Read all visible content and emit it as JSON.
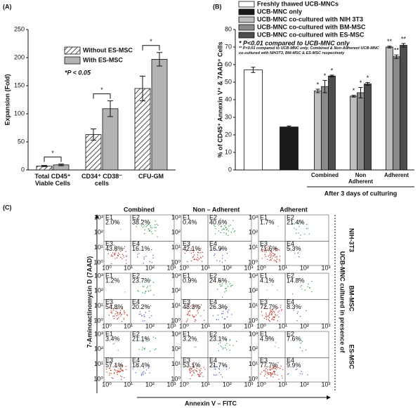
{
  "chart_data": [
    {
      "type": "bar",
      "panel_label": "(A)",
      "y_label": "Expansion (Fold)",
      "categories": [
        "Total CD45⁺ Viable Cells",
        "CD34⁺ CD38⁻ cells",
        "CFU-GM"
      ],
      "series": [
        {
          "name": "Without ES-MSC",
          "color": "#ffffff",
          "pattern": "hatch",
          "values": [
            7,
            63,
            145
          ],
          "errors": [
            1,
            10,
            22
          ]
        },
        {
          "name": "With ES-MSC",
          "color": "#b3b3b3",
          "values": [
            9,
            109,
            197
          ],
          "errors": [
            1.5,
            14,
            12
          ]
        }
      ],
      "significance": [
        "*",
        "*",
        "*"
      ],
      "note": "*P < 0.05",
      "ylim": [
        0,
        250
      ],
      "yticks": [
        0,
        50,
        100,
        150,
        200,
        250
      ]
    },
    {
      "type": "bar",
      "panel_label": "(B)",
      "y_label": "% of CD45⁺ Annexin V⁺ & 7AAD⁺ Cells",
      "categories": [
        null,
        null,
        "Combined",
        "Non Adherent",
        "Adherent"
      ],
      "x_group_label": "After 3 days of culturing",
      "series": [
        {
          "name": "Freshly thawed UCB-MNCs",
          "color": "#ffffff",
          "values": [
            57,
            null,
            null,
            null,
            null
          ],
          "errors": [
            1.5,
            null,
            null,
            null,
            null
          ],
          "markers": [
            null,
            null,
            null,
            null,
            null
          ]
        },
        {
          "name": "UCB-MNC only",
          "color": "#1a1a1a",
          "values": [
            null,
            24.5,
            null,
            null,
            null
          ],
          "errors": [
            null,
            0.5,
            null,
            null,
            null
          ],
          "markers": [
            null,
            null,
            null,
            null,
            null
          ]
        },
        {
          "name": "UCB-MNC co-cultured with NIH 3T3",
          "color": "#bdbdbd",
          "values": [
            null,
            null,
            45,
            42,
            70
          ],
          "errors": [
            null,
            null,
            1,
            0.5,
            0.5
          ],
          "markers": [
            null,
            null,
            "*",
            "*",
            "**"
          ]
        },
        {
          "name": "UCB-MNC co-cultured with BM-MSC",
          "color": "#8a8a8a",
          "values": [
            null,
            null,
            47.5,
            44,
            64.5
          ],
          "errors": [
            null,
            null,
            3.5,
            3,
            1
          ],
          "markers": [
            null,
            null,
            "*",
            "*",
            "**"
          ]
        },
        {
          "name": "UCB-MNC co-cultured with ES-MSC",
          "color": "#4d4d4d",
          "values": [
            null,
            null,
            53.5,
            49,
            71
          ],
          "errors": [
            null,
            null,
            0.5,
            0.8,
            1
          ],
          "markers": [
            null,
            null,
            "*",
            "*",
            "**"
          ]
        }
      ],
      "notes": [
        "* P<0.01 compared to UCB-MNC only",
        "** P<0.01 compared to UCB-MNC only, Combined & Non-Adherent UCB-MNC co-cultured with NIH3T3, BM-MSC & ES-MSC respectively"
      ],
      "ylim": [
        0,
        80
      ],
      "yticks": [
        0,
        10,
        20,
        30,
        40,
        50,
        60,
        70,
        80
      ]
    }
  ],
  "flow_panel": {
    "panel_label": "(C)",
    "y_label": "7-Aminoactinomycin D (7AAD)",
    "x_label": "Annexin V – FITC",
    "row_title": "UCB-MNC cultured in presence of",
    "columns": [
      "Combined",
      "Non – Adherent",
      "Adherent"
    ],
    "rows": [
      "NIH-3T3",
      "BM-MSC",
      "ES-MSC"
    ],
    "axis_ticks": [
      "10⁰",
      "10¹",
      "10²",
      "10³"
    ],
    "plots": [
      [
        [
          {
            "gate": "E1",
            "percent": "2.0%"
          },
          {
            "gate": "E2",
            "percent": "38.2%"
          },
          {
            "gate": "E3",
            "percent": "43.8%"
          },
          {
            "gate": "E4",
            "percent": "16.1%"
          }
        ],
        [
          {
            "gate": "E1",
            "percent": "0.4%"
          },
          {
            "gate": "E2",
            "percent": "40.6%"
          },
          {
            "gate": "E3",
            "percent": "42.1%"
          },
          {
            "gate": "E4",
            "percent": "16.9%"
          }
        ],
        [
          {
            "gate": "E1",
            "percent": "1.7%"
          },
          {
            "gate": "E2",
            "percent": "21.4%"
          },
          {
            "gate": "E3",
            "percent": "71.6%"
          },
          {
            "gate": "E4",
            "percent": "5.3%"
          }
        ]
      ],
      [
        [
          {
            "gate": "E1",
            "percent": "1.2%"
          },
          {
            "gate": "E2",
            "percent": "23.7%"
          },
          {
            "gate": "E3",
            "percent": "54.8%"
          },
          {
            "gate": "E4",
            "percent": "20.2%"
          }
        ],
        [
          {
            "gate": "E1",
            "percent": "0.9%"
          },
          {
            "gate": "E2",
            "percent": "24.6%"
          },
          {
            "gate": "E3",
            "percent": "48.3%"
          },
          {
            "gate": "E4",
            "percent": "26.3%"
          }
        ],
        [
          {
            "gate": "E1",
            "percent": "4.1%"
          },
          {
            "gate": "E2",
            "percent": "14.8%"
          },
          {
            "gate": "E3",
            "percent": "72.7%"
          },
          {
            "gate": "E4",
            "percent": "8.3%"
          }
        ]
      ],
      [
        [
          {
            "gate": "E1",
            "percent": "3.4%"
          },
          {
            "gate": "E2",
            "percent": "21.1%"
          },
          {
            "gate": "E3",
            "percent": "57.1%"
          },
          {
            "gate": "E4",
            "percent": "18.4%"
          }
        ],
        [
          {
            "gate": "E1",
            "percent": "3.2%"
          },
          {
            "gate": "E2",
            "percent": "23.1%"
          },
          {
            "gate": "E3",
            "percent": "53.1%"
          },
          {
            "gate": "E4",
            "percent": "21.7%"
          }
        ],
        [
          {
            "gate": "E1",
            "percent": "4.9%"
          },
          {
            "gate": "E2",
            "percent": "7.6%"
          },
          {
            "gate": "E3",
            "percent": "77.7%"
          },
          {
            "gate": "E4",
            "percent": "9.9%"
          }
        ]
      ]
    ]
  }
}
